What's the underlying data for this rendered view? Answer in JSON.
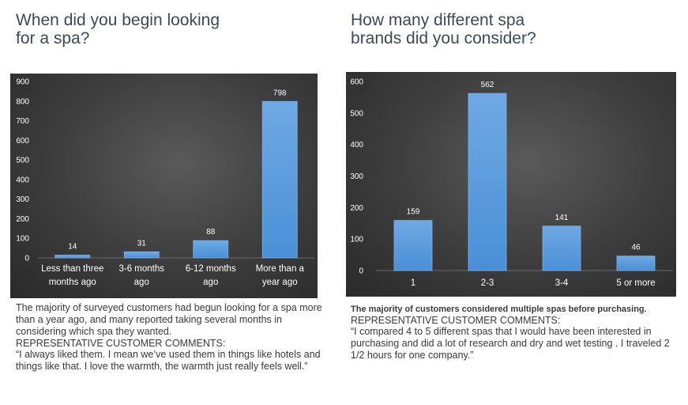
{
  "colors": {
    "bar": "#4a8fd6",
    "bar_top": "#6fa9e4",
    "label": "#ffffff",
    "grid": "#5a5a5a"
  },
  "left_panel": {
    "title": "When did you begin looking for a spa?",
    "summary": "The majority of surveyed customers had begun looking for a spa more than a year ago, and many reported taking several months in considering which spa they wanted.",
    "comments_heading": "REPRESENTATIVE CUSTOMER COMMENTS:",
    "quote": "“I always liked them. I mean we’ve used them in things like hotels and things like that. I love the warmth, the warmth just really feels well.”"
  },
  "right_panel": {
    "title": "How many different spa brands did you consider?",
    "summary": "The majority of customers considered multiple spas before purchasing.",
    "comments_heading": "REPRESENTATIVE CUSTOMER COMMENTS:",
    "quote": "“I compared 4 to 5 different spas that I would have been interested in purchasing and did a lot of research and dry and wet testing . I traveled 2 1/2 hours for one company.”"
  },
  "chart_data": [
    {
      "type": "bar",
      "title": "When did you begin looking for a spa?",
      "categories": [
        [
          "Less than three",
          "months ago"
        ],
        [
          "3-6 months",
          "ago"
        ],
        [
          "6-12 months",
          "ago"
        ],
        [
          "More than a",
          "year ago"
        ]
      ],
      "values": [
        14,
        31,
        88,
        798
      ],
      "ylim": [
        0,
        900
      ],
      "yticks": [
        0,
        100,
        200,
        300,
        400,
        500,
        600,
        700,
        800,
        900
      ],
      "grid": false,
      "data_labels": true
    },
    {
      "type": "bar",
      "title": "How many different spa brands did you consider?",
      "categories": [
        [
          "1"
        ],
        [
          "2-3"
        ],
        [
          "3-4"
        ],
        [
          "5 or more"
        ]
      ],
      "values": [
        159,
        562,
        141,
        46
      ],
      "ylim": [
        0,
        600
      ],
      "yticks": [
        0,
        100,
        200,
        300,
        400,
        500,
        600
      ],
      "grid": false,
      "data_labels": true
    }
  ]
}
